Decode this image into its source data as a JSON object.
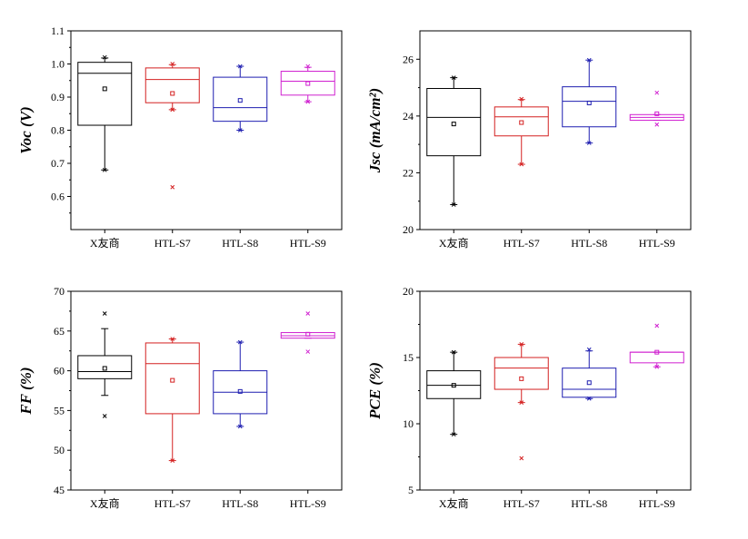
{
  "chart_data": [
    {
      "type": "box",
      "ylabel": "Voc (V)",
      "ylim": [
        0.5,
        1.1
      ],
      "yticks": [
        "0.6",
        "0.7",
        "0.8",
        "0.9",
        "1.0",
        "1.1"
      ],
      "categories": [
        "X友商",
        "HTL-S7",
        "HTL-S8",
        "HTL-S9"
      ],
      "colors": [
        "#000000",
        "#d42020",
        "#1e1eb0",
        "#d020d0"
      ],
      "boxes": [
        {
          "q1": 0.815,
          "median": 0.972,
          "q3": 1.005,
          "whisker_low": 0.68,
          "whisker_high": 1.018,
          "mean": 0.925,
          "extremes": [
            0.68,
            1.02
          ],
          "outliers": []
        },
        {
          "q1": 0.883,
          "median": 0.953,
          "q3": 0.988,
          "whisker_low": 0.862,
          "whisker_high": 0.998,
          "mean": 0.911,
          "extremes": [
            0.862,
            1.0
          ],
          "outliers": [
            0.628
          ]
        },
        {
          "q1": 0.827,
          "median": 0.868,
          "q3": 0.96,
          "whisker_low": 0.8,
          "whisker_high": 0.993,
          "mean": 0.89,
          "extremes": [
            0.8,
            0.993
          ],
          "outliers": []
        },
        {
          "q1": 0.906,
          "median": 0.948,
          "q3": 0.978,
          "whisker_low": 0.886,
          "whisker_high": 0.99,
          "mean": 0.941,
          "extremes": [
            0.886,
            0.993
          ],
          "outliers": []
        }
      ]
    },
    {
      "type": "box",
      "ylabel": "Jsc (mA/cm²)",
      "ylim": [
        20,
        27
      ],
      "yticks": [
        "20",
        "22",
        "24",
        "26"
      ],
      "categories": [
        "X友商",
        "HTL-S7",
        "HTL-S8",
        "HTL-S9"
      ],
      "colors": [
        "#000000",
        "#d42020",
        "#1e1eb0",
        "#d020d0"
      ],
      "boxes": [
        {
          "q1": 22.6,
          "median": 23.95,
          "q3": 24.97,
          "whisker_low": 20.88,
          "whisker_high": 25.35,
          "mean": 23.72,
          "extremes": [
            20.88,
            25.35
          ],
          "outliers": []
        },
        {
          "q1": 23.3,
          "median": 23.97,
          "q3": 24.32,
          "whisker_low": 22.3,
          "whisker_high": 24.58,
          "mean": 23.77,
          "extremes": [
            22.3,
            24.6
          ],
          "outliers": []
        },
        {
          "q1": 23.62,
          "median": 24.52,
          "q3": 25.03,
          "whisker_low": 23.05,
          "whisker_high": 25.97,
          "mean": 24.46,
          "extremes": [
            23.05,
            25.97
          ],
          "outliers": []
        },
        {
          "q1": 23.85,
          "median": 23.95,
          "q3": 24.05,
          "whisker_low": 23.85,
          "whisker_high": 24.05,
          "mean": 24.08,
          "extremes": [
            23.7,
            24.82
          ],
          "outliers": []
        }
      ]
    },
    {
      "type": "box",
      "ylabel": "FF (%)",
      "ylim": [
        45,
        70
      ],
      "yticks": [
        "45",
        "50",
        "55",
        "60",
        "65",
        "70"
      ],
      "categories": [
        "X友商",
        "HTL-S7",
        "HTL-S8",
        "HTL-S9"
      ],
      "colors": [
        "#000000",
        "#d42020",
        "#1e1eb0",
        "#d020d0"
      ],
      "boxes": [
        {
          "q1": 59.0,
          "median": 59.9,
          "q3": 61.9,
          "whisker_low": 56.9,
          "whisker_high": 65.3,
          "mean": 60.3,
          "extremes": [
            54.3,
            67.2
          ],
          "outliers": []
        },
        {
          "q1": 54.6,
          "median": 60.9,
          "q3": 63.5,
          "whisker_low": 48.7,
          "whisker_high": 64.0,
          "mean": 58.8,
          "extremes": [
            48.7,
            64.0
          ],
          "outliers": []
        },
        {
          "q1": 54.6,
          "median": 57.3,
          "q3": 60.0,
          "whisker_low": 53.0,
          "whisker_high": 63.6,
          "mean": 57.4,
          "extremes": [
            53.0,
            63.6
          ],
          "outliers": []
        },
        {
          "q1": 64.1,
          "median": 64.4,
          "q3": 64.8,
          "whisker_low": 64.1,
          "whisker_high": 64.8,
          "mean": 64.6,
          "extremes": [
            62.4,
            67.2
          ],
          "outliers": []
        }
      ]
    },
    {
      "type": "box",
      "ylabel": "PCE (%)",
      "ylim": [
        5,
        20
      ],
      "yticks": [
        "5",
        "10",
        "15",
        "20"
      ],
      "categories": [
        "X友商",
        "HTL-S7",
        "HTL-S8",
        "HTL-S9"
      ],
      "colors": [
        "#000000",
        "#d42020",
        "#1e1eb0",
        "#d020d0"
      ],
      "boxes": [
        {
          "q1": 11.9,
          "median": 12.9,
          "q3": 14.0,
          "whisker_low": 9.2,
          "whisker_high": 15.4,
          "mean": 12.9,
          "extremes": [
            9.2,
            15.4
          ],
          "outliers": []
        },
        {
          "q1": 12.6,
          "median": 14.2,
          "q3": 15.0,
          "whisker_low": 11.6,
          "whisker_high": 16.0,
          "mean": 13.4,
          "extremes": [
            11.6,
            16.0
          ],
          "outliers": [
            7.4
          ]
        },
        {
          "q1": 12.0,
          "median": 12.6,
          "q3": 14.2,
          "whisker_low": 11.9,
          "whisker_high": 15.5,
          "mean": 13.1,
          "extremes": [
            11.9,
            15.6
          ],
          "outliers": []
        },
        {
          "q1": 14.6,
          "median": 15.4,
          "q3": 15.4,
          "whisker_low": 14.3,
          "whisker_high": 15.4,
          "mean": 15.4,
          "extremes": [
            14.3,
            17.4
          ],
          "outliers": []
        }
      ]
    }
  ]
}
